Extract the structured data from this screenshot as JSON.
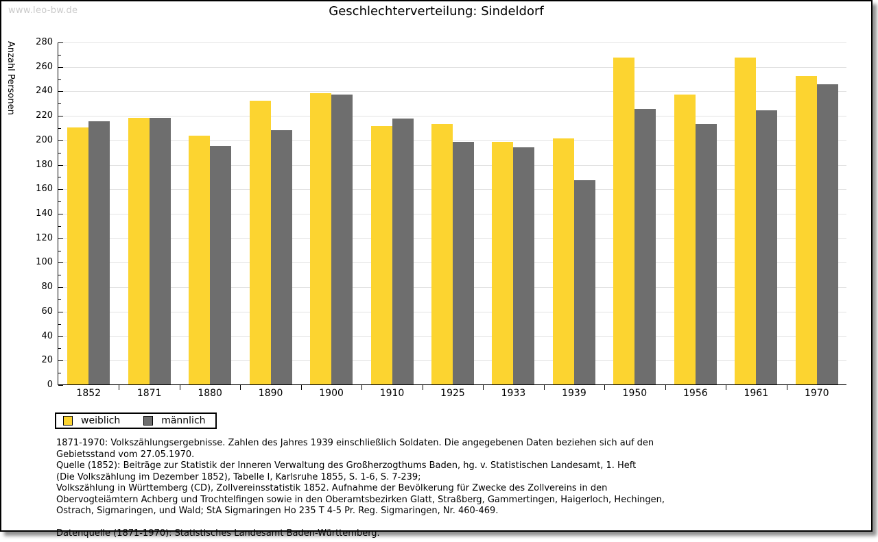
{
  "watermark": "www.leo-bw.de",
  "chart_data": {
    "type": "bar",
    "title": "Geschlechterverteilung: Sindeldorf",
    "xlabel": "",
    "ylabel": "Anzahl Personen",
    "ylim": [
      0,
      280
    ],
    "ytick_step": 20,
    "ytick_minor_step": 10,
    "grid": true,
    "gridline_color": "#e2e2e2",
    "legend_position": "bottom-left",
    "categories": [
      "1852",
      "1871",
      "1880",
      "1890",
      "1900",
      "1910",
      "1925",
      "1933",
      "1939",
      "1950",
      "1956",
      "1961",
      "1970"
    ],
    "series": [
      {
        "name": "weiblich",
        "color": "#FCD430",
        "values": [
          210,
          218,
          203,
          232,
          238,
          211,
          213,
          198,
          201,
          267,
          237,
          267,
          252
        ]
      },
      {
        "name": "männlich",
        "color": "#6E6E6E",
        "values": [
          215,
          218,
          195,
          208,
          237,
          217,
          198,
          194,
          167,
          225,
          213,
          224,
          245
        ]
      }
    ]
  },
  "notes": {
    "source_lines": [
      "1871-1970: Volkszählungsergebnisse. Zahlen des Jahres 1939 einschließlich Soldaten. Die angegebenen Daten beziehen sich auf den",
      "Gebietsstand vom 27.05.1970.",
      "Quelle (1852): Beiträge zur Statistik der Inneren Verwaltung des Großherzogthums Baden, hg. v. Statistischen Landesamt, 1. Heft",
      "(Die Volkszählung im Dezember 1852), Tabelle I, Karlsruhe 1855, S. 1-6, S. 7-239;",
      "Volkszählung in Württemberg (CD), Zollvereinsstatistik 1852. Aufnahme der Bevölkerung für Zwecke des Zollvereins in den",
      "Obervogteiämtern Achberg und Trochtelfingen sowie in den Oberamtsbezirken Glatt, Straßberg, Gammertingen, Haigerloch, Hechingen,",
      "Ostrach, Sigmaringen, und Wald; StA Sigmaringen Ho 235 T 4-5 Pr. Reg. Sigmaringen, Nr. 460-469."
    ],
    "data_source": "Datenquelle (1871-1970): Statistisches Landesamt Baden-Württemberg."
  }
}
